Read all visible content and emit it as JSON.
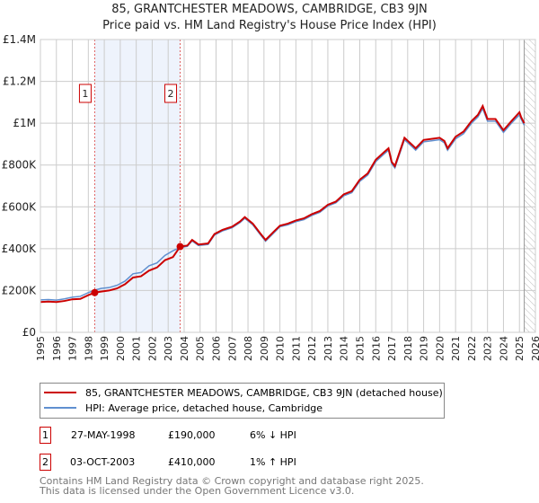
{
  "chart_data": {
    "type": "line",
    "title": "85, GRANTCHESTER MEADOWS, CAMBRIDGE, CB3 9JN",
    "subtitle": "Price paid vs. HM Land Registry's House Price Index (HPI)",
    "xlim": [
      1995,
      2026
    ],
    "ylim": [
      0,
      1400000
    ],
    "x_ticks": [
      1995,
      1996,
      1997,
      1998,
      1999,
      2000,
      2001,
      2002,
      2003,
      2004,
      2005,
      2006,
      2007,
      2008,
      2009,
      2010,
      2011,
      2012,
      2013,
      2014,
      2015,
      2016,
      2017,
      2018,
      2019,
      2020,
      2021,
      2022,
      2023,
      2024,
      2025,
      2026
    ],
    "y_ticks": [
      {
        "v": 0,
        "label": "£0"
      },
      {
        "v": 200000,
        "label": "£200K"
      },
      {
        "v": 400000,
        "label": "£400K"
      },
      {
        "v": 600000,
        "label": "£600K"
      },
      {
        "v": 800000,
        "label": "£800K"
      },
      {
        "v": 1000000,
        "label": "£1M"
      },
      {
        "v": 1200000,
        "label": "£1.2M"
      },
      {
        "v": 1400000,
        "label": "£1.4M"
      }
    ],
    "grid": true,
    "colors": {
      "property": "#cc0000",
      "hpi": "#6090d0",
      "shade": "#eef3fc",
      "hatch_start": 2025.3
    },
    "series": [
      {
        "name": "85, GRANTCHESTER MEADOWS, CAMBRIDGE, CB3 9JN (detached house)",
        "color": "#cc0000",
        "x": [
          1995,
          1995.5,
          1996,
          1996.5,
          1997,
          1997.5,
          1998,
          1998.4,
          1998.8,
          1999.3,
          1999.8,
          2000.3,
          2000.8,
          2001.3,
          2001.8,
          2002.3,
          2002.8,
          2003.3,
          2003.75,
          2004.2,
          2004.5,
          2004.9,
          2005.5,
          2005.9,
          2006.4,
          2007,
          2007.5,
          2007.8,
          2008.3,
          2008.8,
          2009.1,
          2009.6,
          2010,
          2010.5,
          2011,
          2011.5,
          2012,
          2012.5,
          2013,
          2013.5,
          2014,
          2014.5,
          2015,
          2015.5,
          2016,
          2016.5,
          2016.8,
          2017,
          2017.2,
          2017.8,
          2018.3,
          2018.5,
          2019,
          2019.5,
          2020,
          2020.3,
          2020.5,
          2021,
          2021.5,
          2022,
          2022.4,
          2022.7,
          2023,
          2023.5,
          2024,
          2024.5,
          2025,
          2025.1,
          2025.3
        ],
        "y": [
          145000,
          147000,
          145000,
          150000,
          158000,
          160000,
          178000,
          190000,
          195000,
          200000,
          210000,
          230000,
          262000,
          268000,
          295000,
          310000,
          345000,
          360000,
          410000,
          415000,
          442000,
          420000,
          425000,
          470000,
          490000,
          505000,
          530000,
          551000,
          520000,
          470000,
          442000,
          480000,
          510000,
          520000,
          535000,
          545000,
          565000,
          580000,
          610000,
          625000,
          660000,
          675000,
          730000,
          760000,
          825000,
          860000,
          880000,
          815000,
          795000,
          930000,
          895000,
          880000,
          920000,
          925000,
          930000,
          915000,
          880000,
          935000,
          960000,
          1010000,
          1040000,
          1082000,
          1020000,
          1020000,
          966000,
          1010000,
          1052000,
          1030000,
          1000000
        ]
      },
      {
        "name": "HPI: Average price, detached house, Cambridge",
        "color": "#6090d0",
        "x": [
          1995,
          1995.5,
          1996,
          1996.5,
          1997,
          1997.5,
          1998,
          1998.4,
          1998.8,
          1999.3,
          1999.8,
          2000.3,
          2000.8,
          2001.3,
          2001.8,
          2002.3,
          2002.8,
          2003.3,
          2003.75,
          2004.2,
          2004.5,
          2004.9,
          2005.5,
          2005.9,
          2006.4,
          2007,
          2007.5,
          2007.8,
          2008.3,
          2008.8,
          2009.1,
          2009.6,
          2010,
          2010.5,
          2011,
          2011.5,
          2012,
          2012.5,
          2013,
          2013.5,
          2014,
          2014.5,
          2015,
          2015.5,
          2016,
          2016.5,
          2016.8,
          2017,
          2017.2,
          2017.8,
          2018.3,
          2018.5,
          2019,
          2019.5,
          2020,
          2020.3,
          2020.5,
          2021,
          2021.5,
          2022,
          2022.4,
          2022.7,
          2023,
          2023.5,
          2024,
          2024.5,
          2025,
          2025.1,
          2025.3
        ],
        "y": [
          155000,
          157000,
          154000,
          160000,
          168000,
          172000,
          190000,
          202000,
          210000,
          214000,
          225000,
          245000,
          280000,
          286000,
          318000,
          332000,
          368000,
          390000,
          406000,
          411000,
          437000,
          415000,
          420000,
          465000,
          485000,
          500000,
          525000,
          545000,
          514000,
          464000,
          436000,
          474000,
          505000,
          514000,
          529000,
          539000,
          559000,
          574000,
          604000,
          619000,
          653000,
          668000,
          722000,
          752000,
          816000,
          851000,
          871000,
          806000,
          786000,
          921000,
          886000,
          871000,
          911000,
          916000,
          921000,
          906000,
          871000,
          925000,
          950000,
          1000000,
          1030000,
          1070000,
          1010000,
          1010000,
          956000,
          1000000,
          1040000,
          1020000,
          990000
        ]
      }
    ],
    "sales": [
      {
        "id": "1",
        "x": 1998.4,
        "value": 190000,
        "date": "27-MAY-1998",
        "price": "£190,000",
        "hpi_change": "6% ↓ HPI"
      },
      {
        "id": "2",
        "x": 2003.75,
        "value": 410000,
        "date": "03-OCT-2003",
        "price": "£410,000",
        "hpi_change": "1% ↑ HPI"
      }
    ]
  },
  "footer": {
    "line1": "Contains HM Land Registry data © Crown copyright and database right 2025.",
    "line2": "This data is licensed under the Open Government Licence v3.0."
  }
}
